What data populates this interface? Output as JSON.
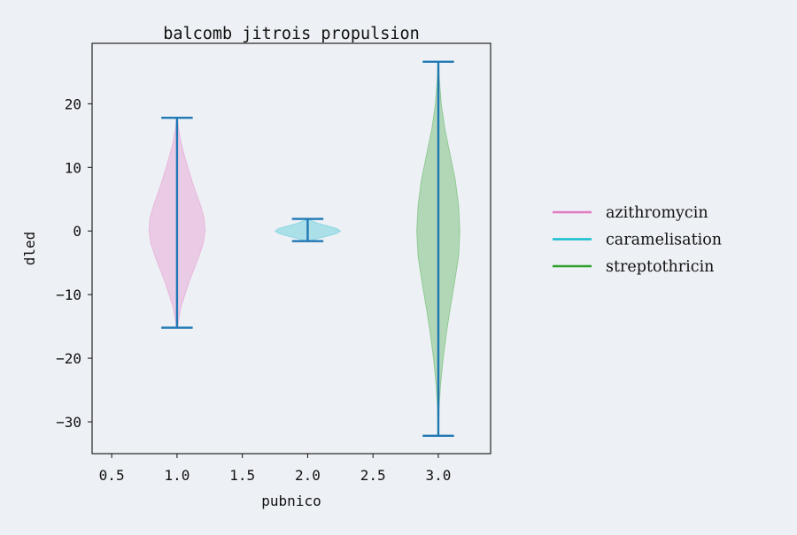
{
  "chart_data": {
    "type": "violin",
    "title": "balcomb jitrois propulsion",
    "xlabel": "pubnico",
    "ylabel": "dled",
    "xlim": [
      0.35,
      3.4
    ],
    "ylim": [
      -35,
      29.5
    ],
    "xticks": [
      0.5,
      1.0,
      1.5,
      2.0,
      2.5,
      3.0
    ],
    "xtick_labels": [
      "0.5",
      "1.0",
      "1.5",
      "2.0",
      "2.5",
      "3.0"
    ],
    "yticks": [
      -30,
      -20,
      -10,
      0,
      10,
      20
    ],
    "ytick_labels": [
      "−30",
      "−20",
      "−10",
      "0",
      "10",
      "20"
    ],
    "grid": false,
    "legend_position": "right",
    "series": [
      {
        "name": "azithromycin",
        "position": 1.0,
        "min": -15.2,
        "max": 17.8,
        "color": "#e377c2",
        "profile": [
          [
            -15.2,
            0.02
          ],
          [
            -14,
            0.05
          ],
          [
            -12,
            0.12
          ],
          [
            -10,
            0.24
          ],
          [
            -8,
            0.37
          ],
          [
            -6,
            0.52
          ],
          [
            -4,
            0.67
          ],
          [
            -2,
            0.8
          ],
          [
            0,
            0.86
          ],
          [
            2,
            0.83
          ],
          [
            4,
            0.72
          ],
          [
            6,
            0.58
          ],
          [
            8,
            0.45
          ],
          [
            10,
            0.33
          ],
          [
            12,
            0.22
          ],
          [
            14,
            0.12
          ],
          [
            16,
            0.05
          ],
          [
            17.8,
            0.01
          ]
        ]
      },
      {
        "name": "caramelisation",
        "position": 2.0,
        "min": -1.6,
        "max": 1.9,
        "color": "#17becf",
        "profile": [
          [
            -1.6,
            0.05
          ],
          [
            -1.2,
            0.3
          ],
          [
            -0.8,
            0.6
          ],
          [
            -0.4,
            0.88
          ],
          [
            0,
            1.0
          ],
          [
            0.4,
            0.88
          ],
          [
            0.8,
            0.6
          ],
          [
            1.2,
            0.32
          ],
          [
            1.6,
            0.12
          ],
          [
            1.9,
            0.03
          ]
        ]
      },
      {
        "name": "streptothricin",
        "position": 3.0,
        "min": -32.2,
        "max": 26.6,
        "color": "#2ca02c",
        "profile": [
          [
            -32.2,
            0.005
          ],
          [
            -28,
            0.02
          ],
          [
            -24,
            0.07
          ],
          [
            -20,
            0.15
          ],
          [
            -16,
            0.25
          ],
          [
            -12,
            0.37
          ],
          [
            -8,
            0.5
          ],
          [
            -4,
            0.62
          ],
          [
            0,
            0.66
          ],
          [
            4,
            0.62
          ],
          [
            8,
            0.52
          ],
          [
            12,
            0.36
          ],
          [
            16,
            0.2
          ],
          [
            20,
            0.09
          ],
          [
            24,
            0.03
          ],
          [
            26.6,
            0.005
          ]
        ]
      }
    ],
    "violin_half_width": 0.25,
    "cap_half_width": 0.12,
    "stat_line_color": "#1f77b4"
  }
}
